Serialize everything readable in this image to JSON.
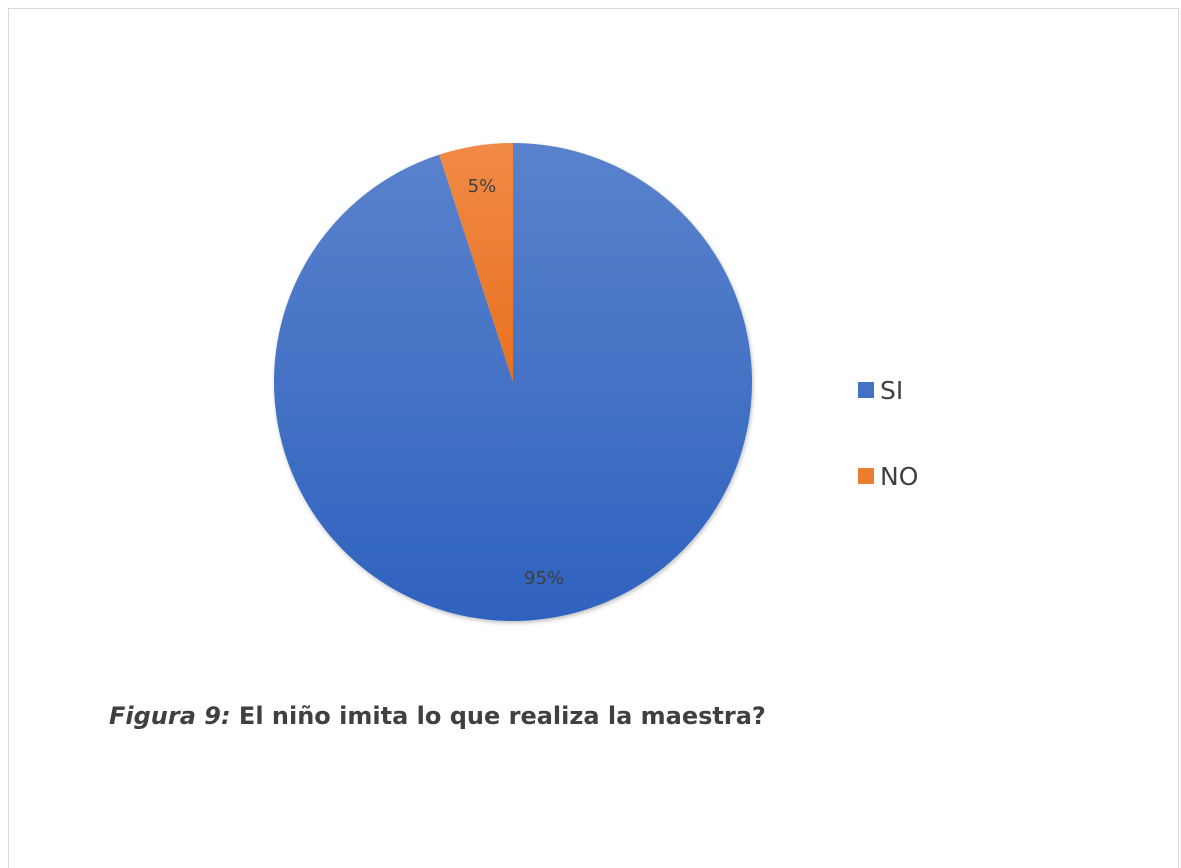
{
  "chart_data": {
    "type": "pie",
    "title": "",
    "slices": [
      {
        "name": "SI",
        "value": 95,
        "label": "95%",
        "color": "#4472c4"
      },
      {
        "name": "NO",
        "value": 5,
        "label": "5%",
        "color": "#ed7d31"
      }
    ],
    "legend_position": "right"
  },
  "caption": {
    "figure_label": "Figura 9:",
    "text": " El niño imita lo que realiza la maestra?"
  }
}
